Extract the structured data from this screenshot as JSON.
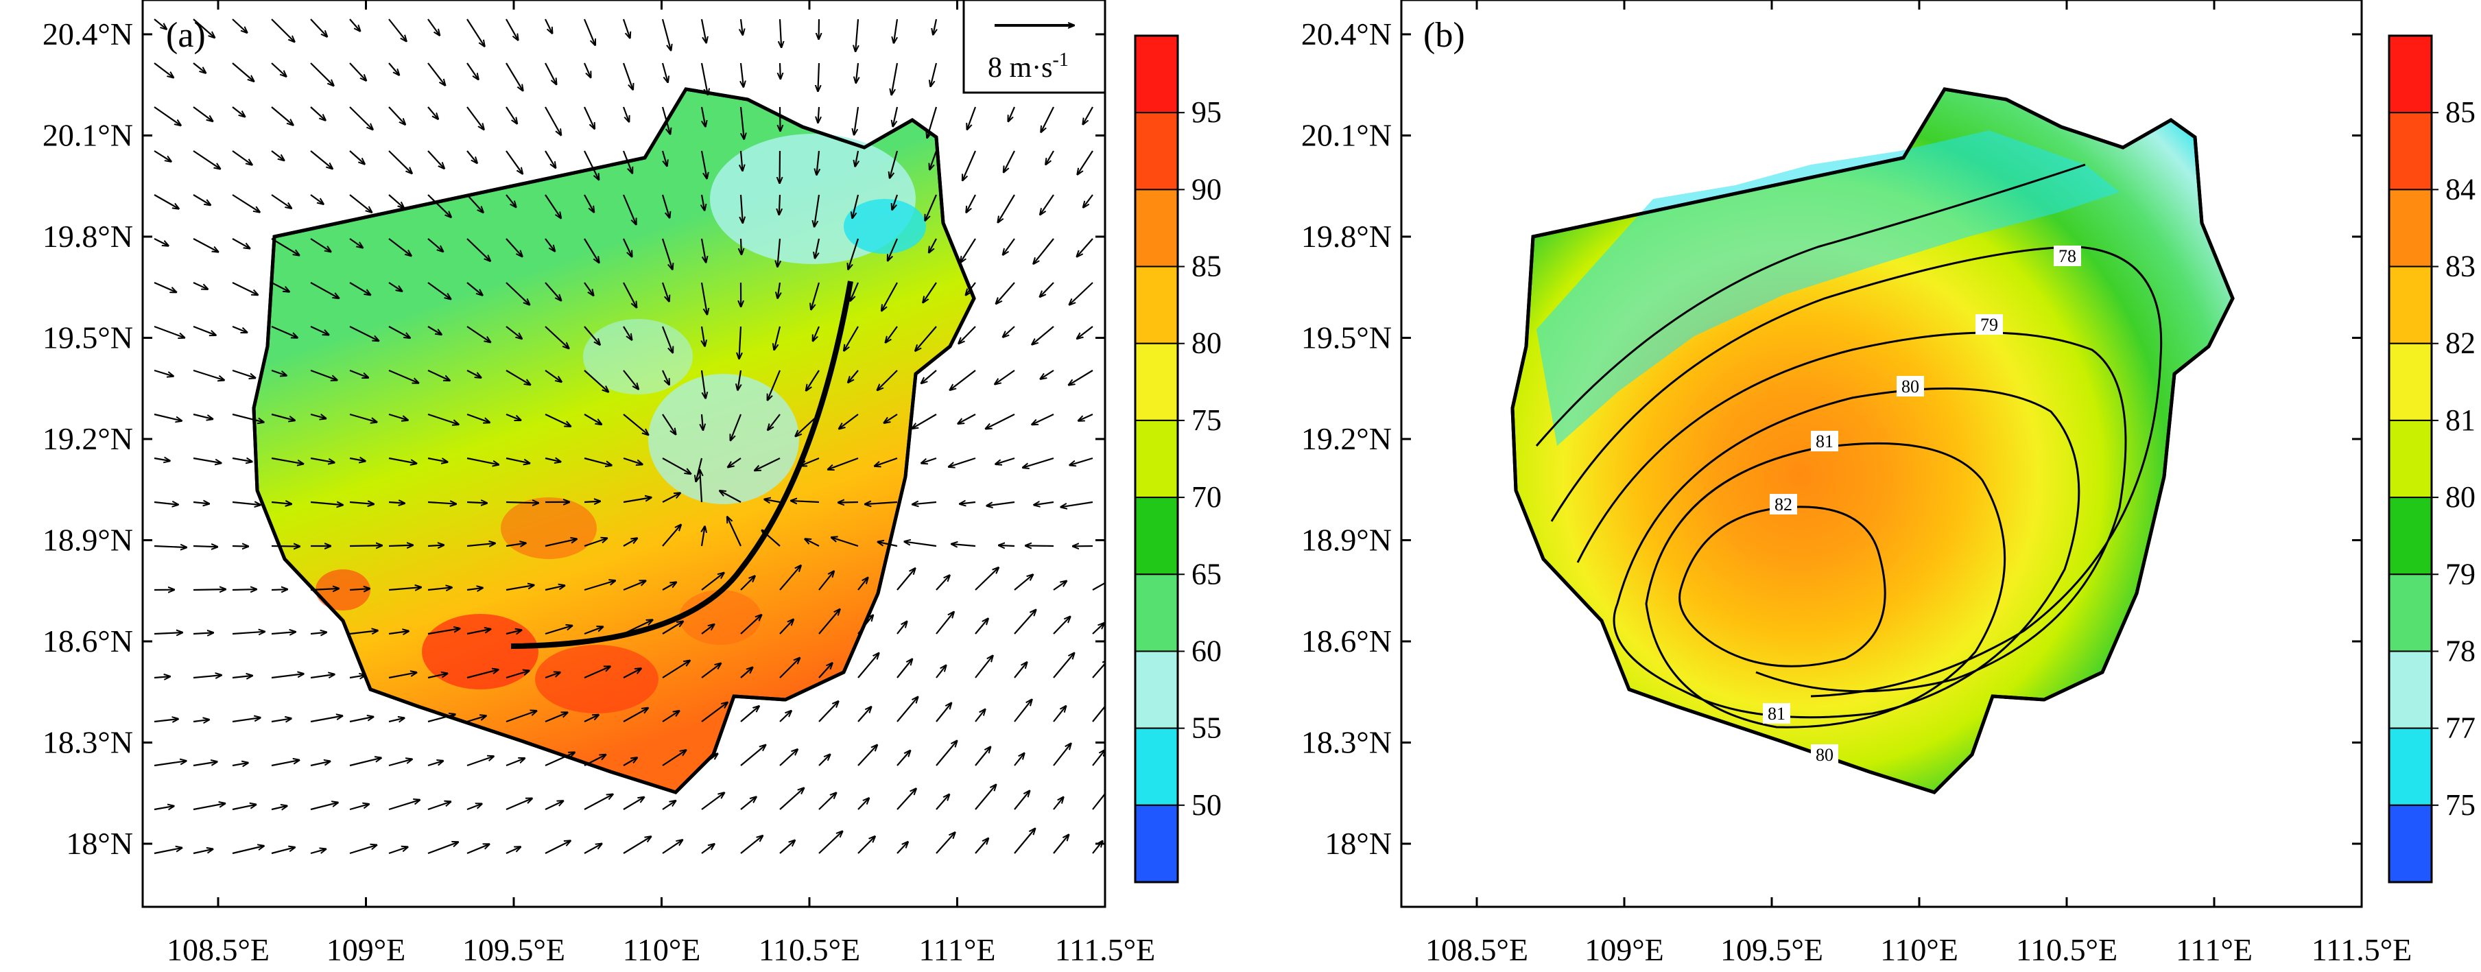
{
  "panels": [
    {
      "id": "a",
      "label": "(a)",
      "y_ticks": [
        "20.4°N",
        "20.1°N",
        "19.8°N",
        "19.5°N",
        "19.2°N",
        "18.9°N",
        "18.6°N",
        "18.3°N",
        "18°N"
      ],
      "x_ticks": [
        "108.5°E",
        "109°E",
        "109.5°E",
        "110°E",
        "110.5°E",
        "111°E",
        "111.5°E"
      ],
      "colorbar_labels": [
        "95",
        "90",
        "85",
        "80",
        "75",
        "70",
        "65",
        "60",
        "55",
        "50"
      ],
      "colorbar_colors": [
        "#ff1a12",
        "#ff4a10",
        "#ff8c10",
        "#ffc00e",
        "#f5f020",
        "#c8f000",
        "#22c818",
        "#56e070",
        "#a8f2e8",
        "#22e4ee",
        "#2058ff"
      ],
      "reference_vector_label": "8 m·s",
      "reference_vector_exponent": "-1"
    },
    {
      "id": "b",
      "label": "(b)",
      "y_ticks": [
        "20.4°N",
        "20.1°N",
        "19.8°N",
        "19.5°N",
        "19.2°N",
        "18.9°N",
        "18.6°N",
        "18.3°N",
        "18°N"
      ],
      "x_ticks": [
        "108.5°E",
        "109°E",
        "109.5°E",
        "110°E",
        "110.5°E",
        "111°E",
        "111.5°E"
      ],
      "colorbar_labels": [
        "85",
        "84",
        "83",
        "82",
        "81",
        "80",
        "79",
        "78",
        "77",
        "75"
      ],
      "colorbar_colors": [
        "#ff1a12",
        "#ff4a10",
        "#ff8c10",
        "#ffc00e",
        "#f5f020",
        "#c8f000",
        "#22c818",
        "#56e070",
        "#a8f2e8",
        "#22e4ee",
        "#2058ff"
      ],
      "contour_labels": [
        "78",
        "79",
        "80",
        "81",
        "82",
        "81",
        "80"
      ]
    }
  ]
}
